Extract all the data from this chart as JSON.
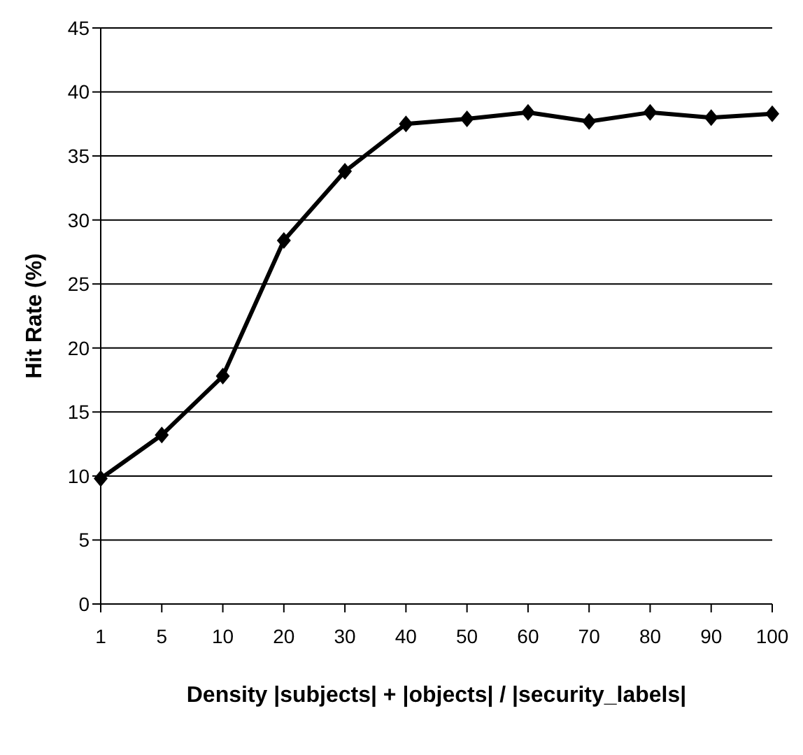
{
  "chart_data": {
    "type": "line",
    "xlabel": "Density |subjects| + |objects| / |security_labels|",
    "ylabel": "Hit Rate (%)",
    "categories": [
      "1",
      "5",
      "10",
      "20",
      "30",
      "40",
      "50",
      "60",
      "70",
      "80",
      "90",
      "100"
    ],
    "series": [
      {
        "color": "#000000",
        "values": [
          9.8,
          13.2,
          17.8,
          28.4,
          33.8,
          37.5,
          37.9,
          38.4,
          37.7,
          38.4,
          38.0,
          38.3
        ]
      }
    ],
    "ylim": [
      0,
      45
    ],
    "yticks": [
      0,
      5,
      10,
      15,
      20,
      25,
      30,
      35,
      40,
      45
    ],
    "grid": "y",
    "marker": "diamond",
    "line_style": "solid",
    "legend": false
  }
}
